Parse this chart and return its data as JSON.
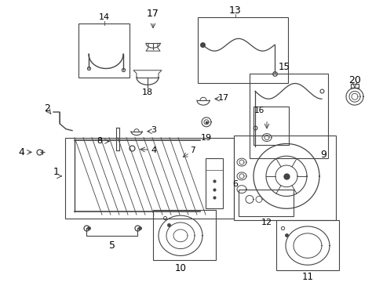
{
  "bg_color": "#ffffff",
  "fig_width": 4.89,
  "fig_height": 3.6,
  "dpi": 100,
  "line_color": "#444444"
}
